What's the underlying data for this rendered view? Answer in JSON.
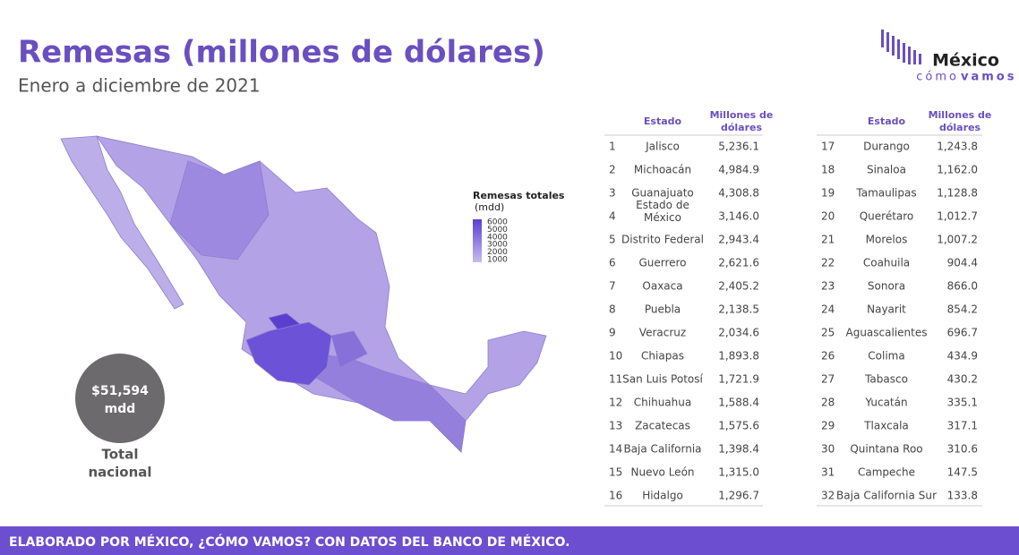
{
  "header": {
    "title": "Remesas (millones de dólares)",
    "subtitle": "Enero a diciembre de 2021"
  },
  "logo": {
    "name": "México",
    "tagline_1": "cómo",
    "tagline_2": "vamos"
  },
  "legend": {
    "title": "Remesas totales",
    "unit": "(mdd)",
    "ticks": [
      6000,
      5000,
      4000,
      3000,
      2000,
      1000
    ]
  },
  "total": {
    "value": "$51,594",
    "unit": "mdd",
    "label_1": "Total",
    "label_2": "nacional"
  },
  "table": {
    "headers": [
      "Estado",
      "Millones de dólares"
    ],
    "rows": [
      [
        1,
        "Jalisco",
        "5,236.1"
      ],
      [
        2,
        "Michoacán",
        "4,984.9"
      ],
      [
        3,
        "Guanajuato",
        "4,308.8"
      ],
      [
        4,
        "Estado de México",
        "3,146.0"
      ],
      [
        5,
        "Distrito Federal",
        "2,943.4"
      ],
      [
        6,
        "Guerrero",
        "2,621.6"
      ],
      [
        7,
        "Oaxaca",
        "2,405.2"
      ],
      [
        8,
        "Puebla",
        "2,138.5"
      ],
      [
        9,
        "Veracruz",
        "2,034.6"
      ],
      [
        10,
        "Chiapas",
        "1,893.8"
      ],
      [
        11,
        "San Luis Potosí",
        "1,721.9"
      ],
      [
        12,
        "Chihuahua",
        "1,588.4"
      ],
      [
        13,
        "Zacatecas",
        "1,575.6"
      ],
      [
        14,
        "Baja California",
        "1,398.4"
      ],
      [
        15,
        "Nuevo León",
        "1,315.0"
      ],
      [
        16,
        "Hidalgo",
        "1,296.7"
      ],
      [
        17,
        "Durango",
        "1,243.8"
      ],
      [
        18,
        "Sinaloa",
        "1,162.0"
      ],
      [
        19,
        "Tamaulipas",
        "1,128.8"
      ],
      [
        20,
        "Querétaro",
        "1,012.7"
      ],
      [
        21,
        "Morelos",
        "1,007.2"
      ],
      [
        22,
        "Coahuila",
        "904.4"
      ],
      [
        23,
        "Sonora",
        "866.0"
      ],
      [
        24,
        "Nayarit",
        "854.2"
      ],
      [
        25,
        "Aguascalientes",
        "696.7"
      ],
      [
        26,
        "Colima",
        "434.9"
      ],
      [
        27,
        "Tabasco",
        "430.2"
      ],
      [
        28,
        "Yucatán",
        "335.1"
      ],
      [
        29,
        "Tlaxcala",
        "317.1"
      ],
      [
        30,
        "Quintana Roo",
        "310.6"
      ],
      [
        31,
        "Campeche",
        "147.5"
      ],
      [
        32,
        "Baja California Sur",
        "133.8"
      ]
    ]
  },
  "footer": "ELABORADO POR MÉXICO, ¿CÓMO VAMOS? CON DATOS DEL BANCO DE MÉXICO."
}
